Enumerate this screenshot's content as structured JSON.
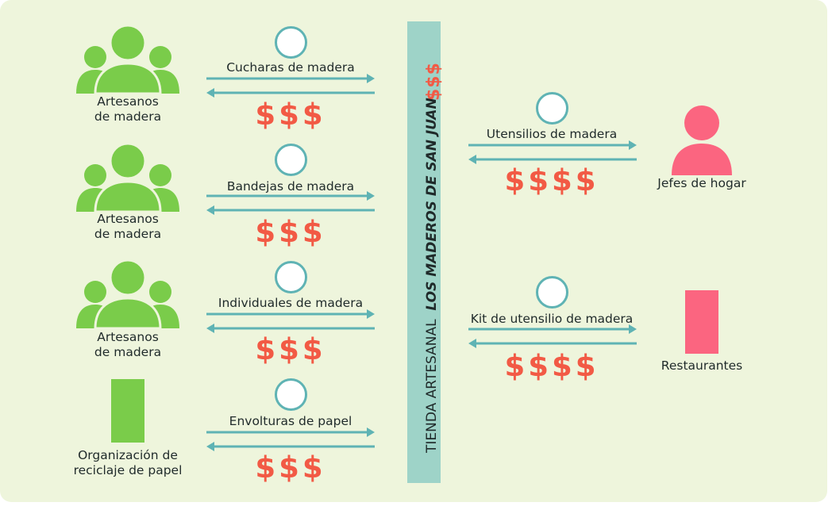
{
  "store": {
    "label": "TIENDA ARTESANAL",
    "name": "LOS MADEROS DE SAN JUAN",
    "money": "$$$"
  },
  "suppliers": [
    {
      "label_line1": "Artesanos",
      "label_line2": "de madera",
      "product": "Cucharas de madera",
      "money": "$$$",
      "icon": "people-group-icon"
    },
    {
      "label_line1": "Artesanos",
      "label_line2": "de madera",
      "product": "Bandejas de madera",
      "money": "$$$",
      "icon": "people-group-icon"
    },
    {
      "label_line1": "Artesanos",
      "label_line2": "de madera",
      "product": "Individuales de madera",
      "money": "$$$",
      "icon": "people-group-icon"
    },
    {
      "label_line1": "Organización de",
      "label_line2": "reciclaje de papel",
      "product": "Envolturas de papel",
      "money": "$$$",
      "icon": "organization-block-icon"
    }
  ],
  "customers": [
    {
      "label": "Jefes de hogar",
      "product": "Utensilios de madera",
      "money": "$$$$",
      "icon": "person-icon"
    },
    {
      "label": "Restaurantes",
      "product": "Kit de utensilio de madera",
      "money": "$$$$",
      "icon": "restaurant-block-icon"
    }
  ],
  "colors": {
    "background": "#eef5dc",
    "supplier": "#7acc4a",
    "customer": "#fb6580",
    "money": "#f25a45",
    "arrow": "#5fb3b4",
    "store": "#9ed3c8"
  }
}
